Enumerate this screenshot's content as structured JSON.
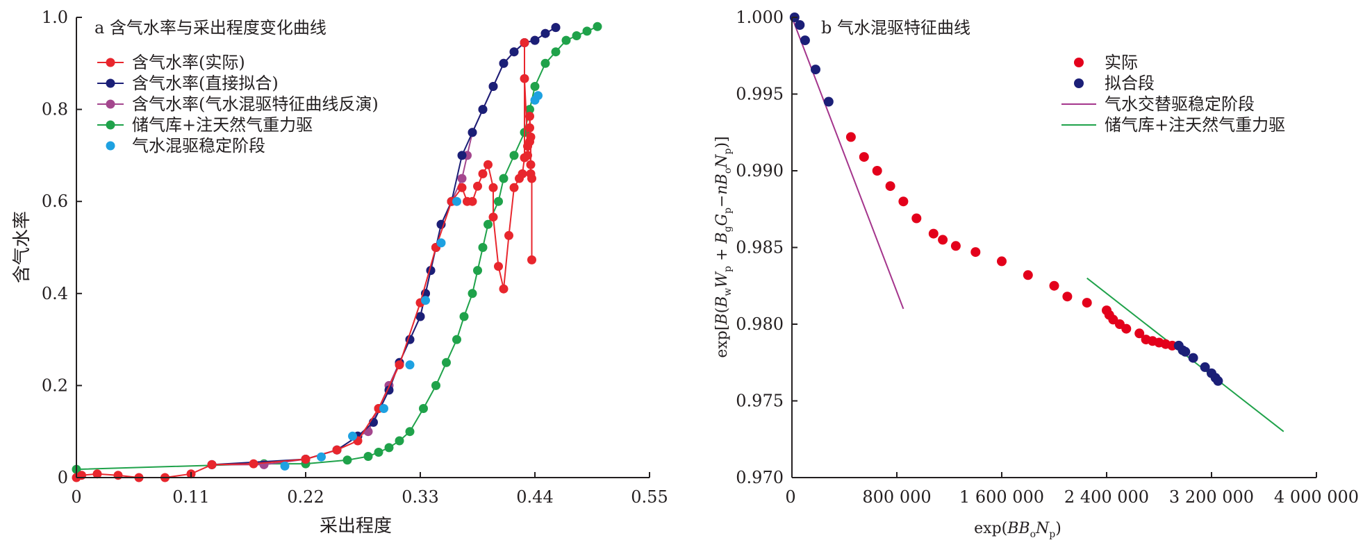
{
  "chart_data": [
    {
      "type": "line",
      "panel": "a",
      "title": "a 含气水率与采出程度变化曲线",
      "xlabel": "采出程度",
      "ylabel": "含气水率",
      "xlim": [
        0,
        0.55
      ],
      "ylim": [
        0,
        1.0
      ],
      "x_ticks": [
        "0",
        "0.11",
        "0.22",
        "0.33",
        "0.44",
        "0.55"
      ],
      "y_ticks": [
        "0",
        "0.2",
        "0.4",
        "0.6",
        "0.8",
        "1.0"
      ],
      "legend_position": "top-left",
      "grid": false,
      "series": [
        {
          "name": "含气水率(实际)",
          "color": "#e8262d",
          "marker": "circle",
          "line": true,
          "points": [
            [
              0.0,
              0.0
            ],
            [
              0.005,
              0.005
            ],
            [
              0.02,
              0.008
            ],
            [
              0.04,
              0.005
            ],
            [
              0.06,
              0.0
            ],
            [
              0.085,
              0.0
            ],
            [
              0.11,
              0.008
            ],
            [
              0.13,
              0.028
            ],
            [
              0.17,
              0.03
            ],
            [
              0.22,
              0.04
            ],
            [
              0.25,
              0.06
            ],
            [
              0.27,
              0.08
            ],
            [
              0.29,
              0.15
            ],
            [
              0.31,
              0.245
            ],
            [
              0.33,
              0.38
            ],
            [
              0.345,
              0.5
            ],
            [
              0.36,
              0.6
            ],
            [
              0.37,
              0.63
            ],
            [
              0.375,
              0.6
            ],
            [
              0.38,
              0.6
            ],
            [
              0.385,
              0.633
            ],
            [
              0.39,
              0.66
            ],
            [
              0.395,
              0.68
            ],
            [
              0.4,
              0.63
            ],
            [
              0.4,
              0.566
            ],
            [
              0.405,
              0.459
            ],
            [
              0.41,
              0.41
            ],
            [
              0.415,
              0.526
            ],
            [
              0.42,
              0.63
            ],
            [
              0.425,
              0.65
            ],
            [
              0.428,
              0.66
            ],
            [
              0.43,
              0.695
            ],
            [
              0.43,
              0.945
            ],
            [
              0.43,
              0.867
            ],
            [
              0.433,
              0.72
            ],
            [
              0.433,
              0.7
            ],
            [
              0.435,
              0.73
            ],
            [
              0.435,
              0.76
            ],
            [
              0.435,
              0.785
            ],
            [
              0.436,
              0.74
            ],
            [
              0.436,
              0.68
            ],
            [
              0.436,
              0.66
            ],
            [
              0.437,
              0.65
            ],
            [
              0.437,
              0.473
            ]
          ]
        },
        {
          "name": "含气水率(直接拟合)",
          "color": "#1b1f77",
          "marker": "circle",
          "line": true,
          "points": [
            [
              0.13,
              0.028
            ],
            [
              0.22,
              0.04
            ],
            [
              0.25,
              0.06
            ],
            [
              0.27,
              0.09
            ],
            [
              0.285,
              0.12
            ],
            [
              0.3,
              0.19
            ],
            [
              0.31,
              0.25
            ],
            [
              0.32,
              0.3
            ],
            [
              0.33,
              0.35
            ],
            [
              0.335,
              0.4
            ],
            [
              0.34,
              0.45
            ],
            [
              0.345,
              0.5
            ],
            [
              0.35,
              0.55
            ],
            [
              0.36,
              0.6
            ],
            [
              0.37,
              0.7
            ],
            [
              0.38,
              0.75
            ],
            [
              0.39,
              0.8
            ],
            [
              0.4,
              0.85
            ],
            [
              0.41,
              0.9
            ],
            [
              0.42,
              0.925
            ],
            [
              0.43,
              0.945
            ],
            [
              0.44,
              0.95
            ],
            [
              0.45,
              0.965
            ],
            [
              0.46,
              0.978
            ]
          ]
        },
        {
          "name": "含气水率(气水混驱特征曲线反演)",
          "color": "#a4478e",
          "marker": "circle",
          "line": true,
          "points": [
            [
              0.13,
              0.028
            ],
            [
              0.18,
              0.028
            ],
            [
              0.22,
              0.04
            ],
            [
              0.25,
              0.06
            ],
            [
              0.27,
              0.09
            ],
            [
              0.28,
              0.1
            ],
            [
              0.29,
              0.15
            ],
            [
              0.3,
              0.2
            ],
            [
              0.31,
              0.25
            ],
            [
              0.32,
              0.3
            ],
            [
              0.33,
              0.35
            ],
            [
              0.335,
              0.4
            ],
            [
              0.34,
              0.45
            ],
            [
              0.345,
              0.5
            ],
            [
              0.35,
              0.55
            ],
            [
              0.36,
              0.6
            ],
            [
              0.37,
              0.65
            ],
            [
              0.375,
              0.7
            ],
            [
              0.38,
              0.75
            ],
            [
              0.39,
              0.8
            ],
            [
              0.4,
              0.85
            ],
            [
              0.41,
              0.9
            ],
            [
              0.42,
              0.925
            ],
            [
              0.43,
              0.945
            ],
            [
              0.44,
              0.95
            ],
            [
              0.45,
              0.965
            ],
            [
              0.46,
              0.978
            ]
          ]
        },
        {
          "name": "储气库+注天然气重力驱",
          "color": "#1fa24a",
          "marker": "circle",
          "line": true,
          "points": [
            [
              0.0,
              0.018
            ],
            [
              0.18,
              0.03
            ],
            [
              0.22,
              0.03
            ],
            [
              0.26,
              0.038
            ],
            [
              0.28,
              0.046
            ],
            [
              0.29,
              0.055
            ],
            [
              0.3,
              0.065
            ],
            [
              0.31,
              0.08
            ],
            [
              0.32,
              0.1
            ],
            [
              0.333,
              0.15
            ],
            [
              0.345,
              0.2
            ],
            [
              0.355,
              0.25
            ],
            [
              0.365,
              0.3
            ],
            [
              0.372,
              0.35
            ],
            [
              0.38,
              0.4
            ],
            [
              0.385,
              0.45
            ],
            [
              0.39,
              0.5
            ],
            [
              0.395,
              0.55
            ],
            [
              0.405,
              0.6
            ],
            [
              0.41,
              0.65
            ],
            [
              0.42,
              0.7
            ],
            [
              0.43,
              0.75
            ],
            [
              0.435,
              0.8
            ],
            [
              0.44,
              0.85
            ],
            [
              0.45,
              0.9
            ],
            [
              0.46,
              0.925
            ],
            [
              0.47,
              0.95
            ],
            [
              0.48,
              0.96
            ],
            [
              0.49,
              0.97
            ],
            [
              0.5,
              0.98
            ]
          ]
        },
        {
          "name": "气水混驱稳定阶段",
          "color": "#1ea1e1",
          "marker": "circle",
          "line": false,
          "points": [
            [
              0.2,
              0.025
            ],
            [
              0.235,
              0.045
            ],
            [
              0.265,
              0.09
            ],
            [
              0.295,
              0.15
            ],
            [
              0.32,
              0.245
            ],
            [
              0.335,
              0.385
            ],
            [
              0.35,
              0.51
            ],
            [
              0.365,
              0.6
            ],
            [
              0.44,
              0.82
            ],
            [
              0.443,
              0.83
            ]
          ]
        }
      ]
    },
    {
      "type": "scatter",
      "panel": "b",
      "title": "b 气水混驱特征曲线",
      "xlabel": "exp(BBₒNₚ)",
      "ylabel": "exp[B(B_wW_p+B_gG_p−nB_oN_p)]",
      "xlim": [
        0,
        4000000
      ],
      "ylim": [
        0.97,
        1.0
      ],
      "x_ticks": [
        "0",
        "800 000",
        "1 600 000",
        "2 400 000",
        "3 200 000",
        "4 000 000"
      ],
      "y_ticks": [
        "0.970",
        "0.975",
        "0.980",
        "0.985",
        "0.990",
        "0.995",
        "1.000"
      ],
      "legend_position": "top-right",
      "grid": false,
      "series": [
        {
          "name": "实际",
          "color": "#e3001b",
          "marker": "circle",
          "points": [
            [
              450000,
              0.9922
            ],
            [
              550000,
              0.9909
            ],
            [
              650000,
              0.99
            ],
            [
              750000,
              0.989
            ],
            [
              850000,
              0.988
            ],
            [
              950000,
              0.9869
            ],
            [
              1080000,
              0.9859
            ],
            [
              1150000,
              0.9855
            ],
            [
              1250000,
              0.9851
            ],
            [
              1400000,
              0.9847
            ],
            [
              1600000,
              0.9841
            ],
            [
              1800000,
              0.9832
            ],
            [
              2000000,
              0.9825
            ],
            [
              2100000,
              0.9818
            ],
            [
              2250000,
              0.9814
            ],
            [
              2400000,
              0.9809
            ],
            [
              2420000,
              0.9806
            ],
            [
              2450000,
              0.9803
            ],
            [
              2500000,
              0.98
            ],
            [
              2550000,
              0.9797
            ],
            [
              2650000,
              0.9794
            ],
            [
              2700000,
              0.979
            ],
            [
              2750000,
              0.9789
            ],
            [
              2800000,
              0.9788
            ],
            [
              2850000,
              0.9787
            ],
            [
              2900000,
              0.9786
            ]
          ]
        },
        {
          "name": "拟合段",
          "color": "#1b1f77",
          "marker": "circle",
          "points": [
            [
              20000,
              1.0
            ],
            [
              60000,
              0.9995
            ],
            [
              100000,
              0.9985
            ],
            [
              180000,
              0.9966
            ],
            [
              280000,
              0.9945
            ],
            [
              2950000,
              0.9786
            ],
            [
              2980000,
              0.9783
            ],
            [
              3000000,
              0.9782
            ],
            [
              3060000,
              0.9778
            ],
            [
              3150000,
              0.9772
            ],
            [
              3200000,
              0.9768
            ],
            [
              3230000,
              0.9765
            ],
            [
              3250000,
              0.9763
            ]
          ]
        },
        {
          "name": "气水交替驱稳定阶段",
          "color": "#a4358c",
          "marker": "none",
          "line_segment": [
            [
              0,
              1.0
            ],
            [
              850000,
              0.981
            ]
          ]
        },
        {
          "name": "储气库+注天然气重力驱",
          "color": "#1fa24a",
          "marker": "none",
          "line_segment": [
            [
              2250000,
              0.983
            ],
            [
              3750000,
              0.973
            ]
          ]
        }
      ]
    }
  ]
}
